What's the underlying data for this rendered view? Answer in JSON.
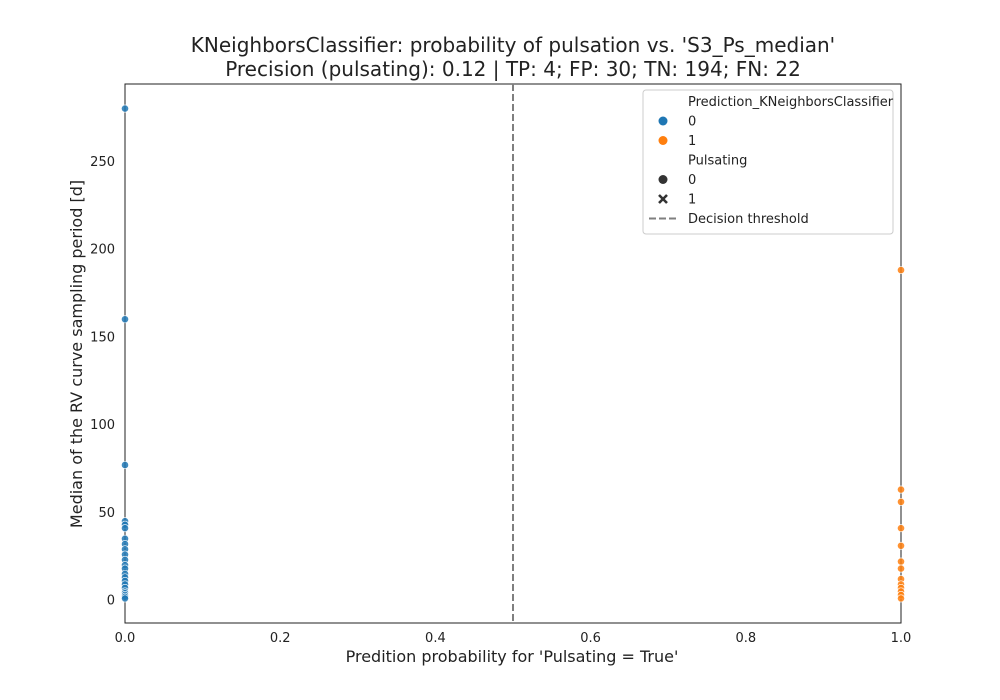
{
  "chart_data": {
    "type": "scatter",
    "title": "KNeighborsClassifier: probability of pulsation vs. 'S3_Ps_median'",
    "subtitle": "Precision (pulsating): 0.12 | TP: 4; FP: 30; TN: 194; FN: 22",
    "xlabel": "Predition probability for 'Pulsating = True'",
    "ylabel": "Median of the RV curve sampling period [d]",
    "xlim": [
      0.0,
      1.0
    ],
    "ylim": [
      -13,
      294
    ],
    "xticks": [
      "0.0",
      "0.2",
      "0.4",
      "0.6",
      "0.8",
      "1.0"
    ],
    "xtick_values": [
      0.0,
      0.2,
      0.4,
      0.6,
      0.8,
      1.0
    ],
    "yticks": [
      "0",
      "50",
      "100",
      "150",
      "200",
      "250"
    ],
    "ytick_values": [
      0,
      50,
      100,
      150,
      200,
      250
    ],
    "grid": false,
    "legend_placement": "top-right",
    "threshold": {
      "x": 0.5,
      "color": "#7f7f7f",
      "label": "Decision threshold"
    },
    "legend": {
      "hue_title": "Prediction_KNeighborsClassifier",
      "hue_items": [
        {
          "label": "0",
          "color": "#1f77b4"
        },
        {
          "label": "1",
          "color": "#ff7f0e"
        }
      ],
      "style_title": "Pulsating",
      "style_items": [
        {
          "label": "0",
          "marker": "circle"
        },
        {
          "label": "1",
          "marker": "x"
        }
      ],
      "threshold_label": "Decision threshold"
    },
    "series": [
      {
        "name": "0",
        "color": "#1f77b4",
        "x": [
          0,
          0,
          0,
          0,
          0,
          0,
          0,
          0,
          0,
          0,
          0,
          0,
          0,
          0,
          0,
          0,
          0,
          0,
          0,
          0,
          0,
          0,
          0
        ],
        "y": [
          280,
          160,
          77,
          45,
          43,
          41,
          35,
          32,
          29,
          26,
          23,
          20,
          18,
          15,
          13,
          11,
          9,
          7,
          5,
          4,
          3,
          2,
          1
        ]
      },
      {
        "name": "1",
        "color": "#ff7f0e",
        "x": [
          1,
          1,
          1,
          1,
          1,
          1,
          1,
          1,
          1,
          1,
          1,
          1,
          1
        ],
        "y": [
          188,
          63,
          56,
          41,
          31,
          22,
          18,
          12,
          9,
          7,
          5,
          3,
          1
        ]
      }
    ]
  }
}
